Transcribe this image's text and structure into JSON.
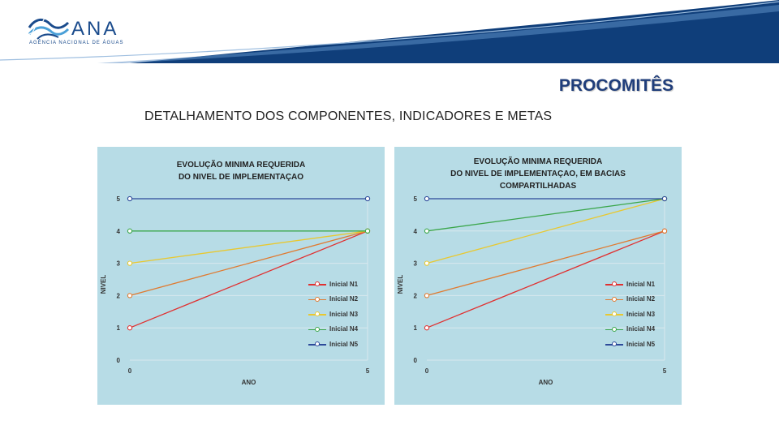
{
  "header": {
    "logo_name": "ANA",
    "logo_subtitle": "AGÊNCIA NACIONAL DE ÁGUAS",
    "brand_color": "#1a4b8c",
    "band_color": "#0f3e7a"
  },
  "page_title": "PROCOMITÊS",
  "subtitle": "DETALHAMENTO DOS COMPONENTES, INDICADORES E METAS",
  "chart_data": [
    {
      "type": "line",
      "title_lines": [
        "EVOLUÇÃO MINIMA REQUERIDA",
        "DO NIVEL DE IMPLEMENTAÇAO"
      ],
      "xlabel": "ANO",
      "ylabel": "NIVEL",
      "x": [
        0,
        5
      ],
      "xlim": [
        0,
        5
      ],
      "ylim": [
        0,
        5
      ],
      "x_ticks": [
        "0",
        "5"
      ],
      "y_ticks": [
        "0",
        "1",
        "2",
        "3",
        "4",
        "5"
      ],
      "grid": true,
      "legend_position": "bottom-right",
      "series": [
        {
          "name": "Inicial N1",
          "color": "#e03030",
          "values": [
            1,
            4
          ]
        },
        {
          "name": "Inicial N2",
          "color": "#e07a30",
          "values": [
            2,
            4
          ]
        },
        {
          "name": "Inicial N3",
          "color": "#e8c830",
          "values": [
            3,
            4
          ]
        },
        {
          "name": "Inicial N4",
          "color": "#3aa64a",
          "values": [
            4,
            4
          ]
        },
        {
          "name": "Inicial N5",
          "color": "#2d4a9a",
          "values": [
            5,
            5
          ]
        }
      ]
    },
    {
      "type": "line",
      "title_lines": [
        "EVOLUÇÃO MINIMA REQUERIDA",
        "DO NIVEL DE IMPLEMENTAÇAO, EM BACIAS",
        "COMPARTILHADAS"
      ],
      "xlabel": "ANO",
      "ylabel": "NIVEL",
      "x": [
        0,
        5
      ],
      "xlim": [
        0,
        5
      ],
      "ylim": [
        0,
        5
      ],
      "x_ticks": [
        "0",
        "5"
      ],
      "y_ticks": [
        "0",
        "1",
        "2",
        "3",
        "4",
        "5"
      ],
      "grid": true,
      "legend_position": "bottom-right",
      "series": [
        {
          "name": "Inicial N1",
          "color": "#e03030",
          "values": [
            1,
            4
          ]
        },
        {
          "name": "Inicial N2",
          "color": "#e07a30",
          "values": [
            2,
            4
          ]
        },
        {
          "name": "Inicial N3",
          "color": "#e8c830",
          "values": [
            3,
            5
          ]
        },
        {
          "name": "Inicial N4",
          "color": "#3aa64a",
          "values": [
            4,
            5
          ]
        },
        {
          "name": "Inicial N5",
          "color": "#2d4a9a",
          "values": [
            5,
            5
          ]
        }
      ]
    }
  ]
}
